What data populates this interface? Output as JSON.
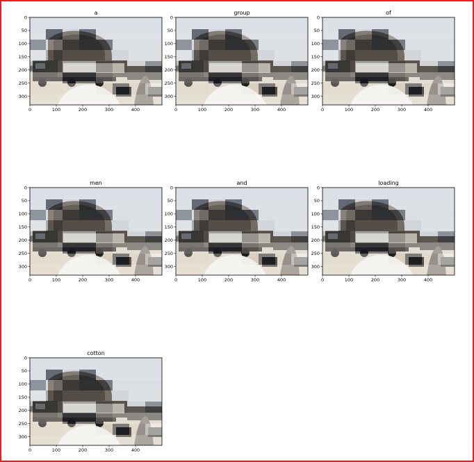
{
  "figure": {
    "colors": {
      "frame": "#ee1c1c",
      "spine": "#000000"
    }
  },
  "chart_data": [
    {
      "type": "heatmap",
      "title": "a",
      "x_ticks": [
        0,
        100,
        200,
        300,
        400
      ],
      "y_ticks": [
        0,
        50,
        100,
        150,
        200,
        250,
        300
      ],
      "xlim": [
        0,
        500
      ],
      "ylim": [
        333,
        0
      ]
    },
    {
      "type": "heatmap",
      "title": "group",
      "x_ticks": [
        0,
        100,
        200,
        300,
        400
      ],
      "y_ticks": [
        0,
        50,
        100,
        150,
        200,
        250,
        300
      ],
      "xlim": [
        0,
        500
      ],
      "ylim": [
        333,
        0
      ]
    },
    {
      "type": "heatmap",
      "title": "of",
      "x_ticks": [
        0,
        100,
        200,
        300,
        400
      ],
      "y_ticks": [
        0,
        50,
        100,
        150,
        200,
        250,
        300
      ],
      "xlim": [
        0,
        500
      ],
      "ylim": [
        333,
        0
      ]
    },
    {
      "type": "heatmap",
      "title": "men",
      "x_ticks": [
        0,
        100,
        200,
        300,
        400
      ],
      "y_ticks": [
        0,
        50,
        100,
        150,
        200,
        250,
        300
      ],
      "xlim": [
        0,
        500
      ],
      "ylim": [
        333,
        0
      ]
    },
    {
      "type": "heatmap",
      "title": "and",
      "x_ticks": [
        0,
        100,
        200,
        300,
        400
      ],
      "y_ticks": [
        0,
        50,
        100,
        150,
        200,
        250,
        300
      ],
      "xlim": [
        0,
        500
      ],
      "ylim": [
        333,
        0
      ]
    },
    {
      "type": "heatmap",
      "title": "loading",
      "x_ticks": [
        0,
        100,
        200,
        300,
        400
      ],
      "y_ticks": [
        0,
        50,
        100,
        150,
        200,
        250,
        300
      ],
      "xlim": [
        0,
        500
      ],
      "ylim": [
        333,
        0
      ]
    },
    {
      "type": "heatmap",
      "title": "cotton",
      "x_ticks": [
        0,
        100,
        200,
        300,
        400
      ],
      "y_ticks": [
        0,
        50,
        100,
        150,
        200,
        250,
        300
      ],
      "xlim": [
        0,
        500
      ],
      "ylim": [
        333,
        0
      ]
    }
  ]
}
